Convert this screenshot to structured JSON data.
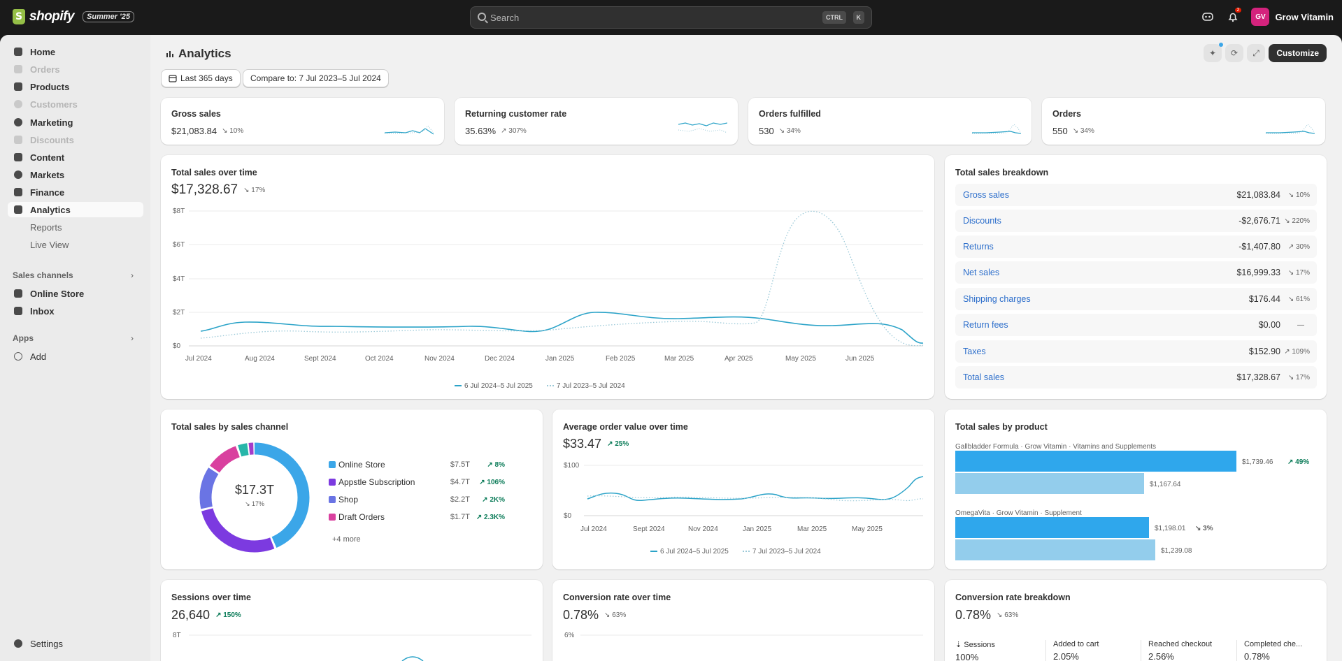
{
  "topbar": {
    "brand": "shopify",
    "edition": "Summer '25",
    "search_placeholder": "Search",
    "kbd_ctrl": "CTRL",
    "kbd_k": "K",
    "notif_count": "2",
    "avatar_initials": "GV",
    "store_name": "Grow Vitamin"
  },
  "sidebar": {
    "items": [
      {
        "label": "Home",
        "enabled": true
      },
      {
        "label": "Orders",
        "enabled": false
      },
      {
        "label": "Products",
        "enabled": true
      },
      {
        "label": "Customers",
        "enabled": false
      },
      {
        "label": "Marketing",
        "enabled": true
      },
      {
        "label": "Discounts",
        "enabled": false
      },
      {
        "label": "Content",
        "enabled": true
      },
      {
        "label": "Markets",
        "enabled": true
      },
      {
        "label": "Finance",
        "enabled": true
      },
      {
        "label": "Analytics",
        "enabled": true,
        "active": true
      }
    ],
    "sub_items": [
      "Reports",
      "Live View"
    ],
    "sales_channels_label": "Sales channels",
    "channels": [
      "Online Store",
      "Inbox"
    ],
    "apps_label": "Apps",
    "add_label": "Add",
    "settings_label": "Settings"
  },
  "header": {
    "title": "Analytics",
    "date_range": "Last 365 days",
    "compare": "Compare to: 7 Jul 2023–5 Jul 2024",
    "customize": "Customize"
  },
  "kpis": [
    {
      "title": "Gross sales",
      "value": "$21,083.84",
      "delta": "↘ 10%"
    },
    {
      "title": "Returning customer rate",
      "value": "35.63%",
      "delta": "↗ 307%"
    },
    {
      "title": "Orders fulfilled",
      "value": "530",
      "delta": "↘ 34%"
    },
    {
      "title": "Orders",
      "value": "550",
      "delta": "↘ 34%"
    }
  ],
  "total_sales": {
    "title": "Total sales over time",
    "value": "$17,328.67",
    "delta": "↘ 17%",
    "y_ticks": [
      "$8T",
      "$6T",
      "$4T",
      "$2T",
      "$0"
    ],
    "x_ticks": [
      "Jul 2024",
      "Aug 2024",
      "Sept 2024",
      "Oct 2024",
      "Nov 2024",
      "Dec 2024",
      "Jan 2025",
      "Feb 2025",
      "Mar 2025",
      "Apr 2025",
      "May 2025",
      "Jun 2025"
    ],
    "legend_current": "6 Jul 2024–5 Jul 2025",
    "legend_previous": "7 Jul 2023–5 Jul 2024"
  },
  "breakdown": {
    "title": "Total sales breakdown",
    "rows": [
      {
        "label": "Gross sales",
        "value": "$21,083.84",
        "delta": "↘ 10%"
      },
      {
        "label": "Discounts",
        "value": "-$2,676.71",
        "delta": "↘ 220%"
      },
      {
        "label": "Returns",
        "value": "-$1,407.80",
        "delta": "↗ 30%"
      },
      {
        "label": "Net sales",
        "value": "$16,999.33",
        "delta": "↘ 17%"
      },
      {
        "label": "Shipping charges",
        "value": "$176.44",
        "delta": "↘ 61%"
      },
      {
        "label": "Return fees",
        "value": "$0.00",
        "delta": "—"
      },
      {
        "label": "Taxes",
        "value": "$152.90",
        "delta": "↗ 109%"
      },
      {
        "label": "Total sales",
        "value": "$17,328.67",
        "delta": "↘ 17%"
      }
    ]
  },
  "by_channel": {
    "title": "Total sales by sales channel",
    "center_value": "$17.3T",
    "center_delta": "↘ 17%",
    "rows": [
      {
        "label": "Online Store",
        "value": "$7.5T",
        "delta": "↗ 8%",
        "color": "#3ba6e8"
      },
      {
        "label": "Appstle Subscription",
        "value": "$4.7T",
        "delta": "↗ 106%",
        "color": "#7c3ae0"
      },
      {
        "label": "Shop",
        "value": "$2.2T",
        "delta": "↗ 2K%",
        "color": "#6a74e4"
      },
      {
        "label": "Draft Orders",
        "value": "$1.7T",
        "delta": "↗ 2.3K%",
        "color": "#d9409f"
      }
    ],
    "more": "+4 more"
  },
  "aov": {
    "title": "Average order value over time",
    "value": "$33.47",
    "delta": "↗ 25%",
    "y_ticks": [
      "$100",
      "$0"
    ],
    "x_ticks": [
      "Jul 2024",
      "Sept 2024",
      "Nov 2024",
      "Jan 2025",
      "Mar 2025",
      "May 2025"
    ],
    "legend_current": "6 Jul 2024–5 Jul 2025",
    "legend_previous": "7 Jul 2023–5 Jul 2024"
  },
  "by_product": {
    "title": "Total sales by product",
    "products": [
      {
        "label": "Gallbladder Formula · Grow Vitamin · Vitamins and Supplements",
        "current": "$1,739.46",
        "previous": "$1,167.64",
        "delta": "↗ 49%"
      },
      {
        "label": "OmegaVita · Grow Vitamin · Supplement",
        "current": "$1,198.01",
        "previous": "$1,239.08",
        "delta": "↘ 3%"
      }
    ]
  },
  "sessions": {
    "title": "Sessions over time",
    "value": "26,640",
    "delta": "↗ 150%",
    "y_tick": "8T"
  },
  "conversion": {
    "title": "Conversion rate over time",
    "value": "0.78%",
    "delta": "↘ 63%",
    "y_tick": "6%"
  },
  "conv_breakdown": {
    "title": "Conversion rate breakdown",
    "value": "0.78%",
    "delta": "↘ 63%",
    "steps": [
      {
        "label": "Sessions",
        "value": "100%"
      },
      {
        "label": "Added to cart",
        "value": "2.05%"
      },
      {
        "label": "Reached checkout",
        "value": "2.56%"
      },
      {
        "label": "Completed che...",
        "value": "0.78%"
      }
    ]
  },
  "colors": {
    "accent": "#2ba3c8",
    "prev_series": "#9bc9d8",
    "bar_current": "#2fa7ec",
    "bar_previous": "#93cdec"
  }
}
